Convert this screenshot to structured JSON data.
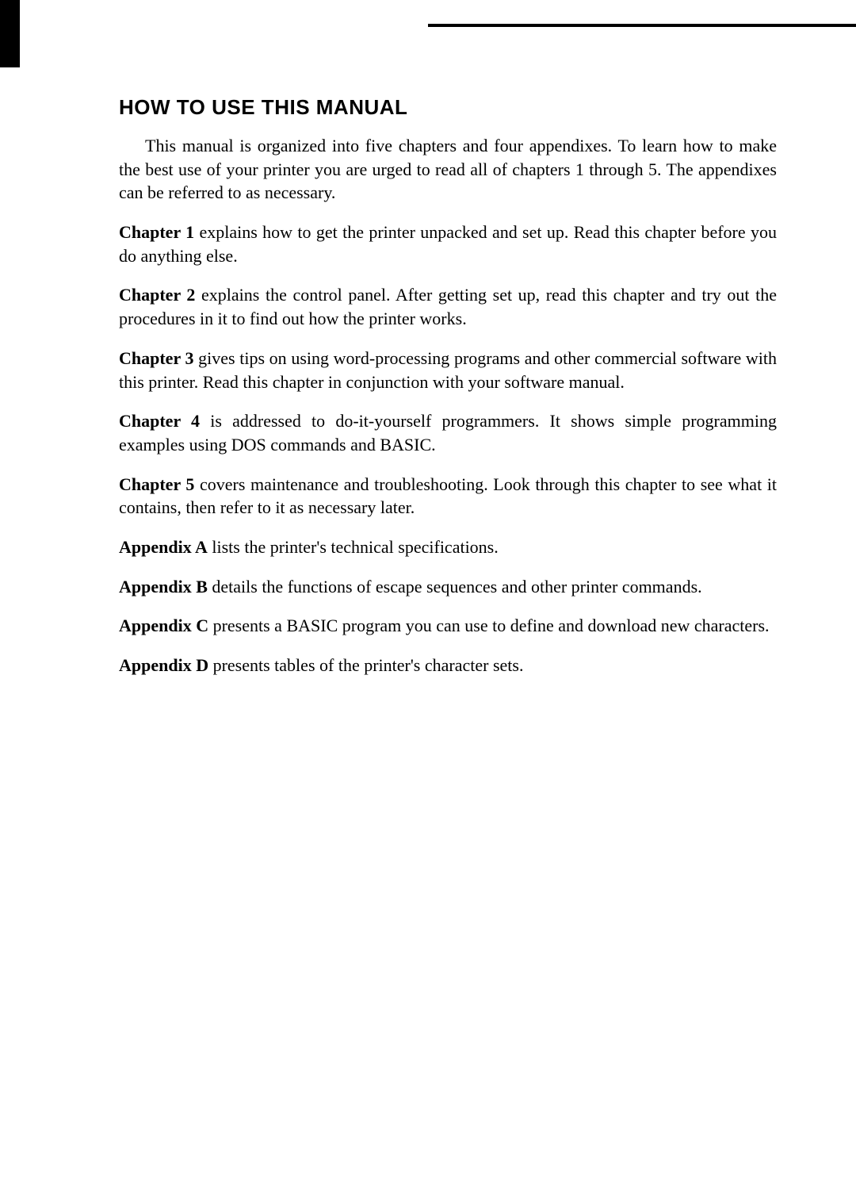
{
  "title": "HOW TO USE THIS MANUAL",
  "intro": "This manual is organized into five chapters and four appendixes. To learn how to make the best use of your printer you are urged to read all of chapters 1 through 5. The appendixes can be referred to as necessary.",
  "sections": [
    {
      "label": "Chapter 1",
      "text": " explains how to get the printer unpacked and set up. Read this chapter before you do anything else."
    },
    {
      "label": "Chapter 2",
      "text": " explains the control panel. After getting set up, read this chapter and try out the procedures in it to find out how the printer works."
    },
    {
      "label": "Chapter 3",
      "text": " gives tips on using word-processing programs and other commercial software with this printer. Read this chapter in conjunction with your software manual."
    },
    {
      "label": "Chapter 4",
      "text": " is addressed to do-it-yourself programmers. It shows simple programming examples using DOS commands and BASIC."
    },
    {
      "label": "Chapter 5",
      "text": " covers maintenance and troubleshooting. Look through this chapter to see what it contains, then refer to it as necessary later."
    },
    {
      "label": "Appendix A",
      "text": " lists the printer's technical specifications."
    },
    {
      "label": "Appendix B",
      "text": " details the functions of escape sequences and other printer commands."
    },
    {
      "label": "Appendix C",
      "text": " presents a BASIC program you can use to define and download new characters."
    },
    {
      "label": "Appendix D",
      "text": " presents tables of the printer's character sets."
    }
  ]
}
